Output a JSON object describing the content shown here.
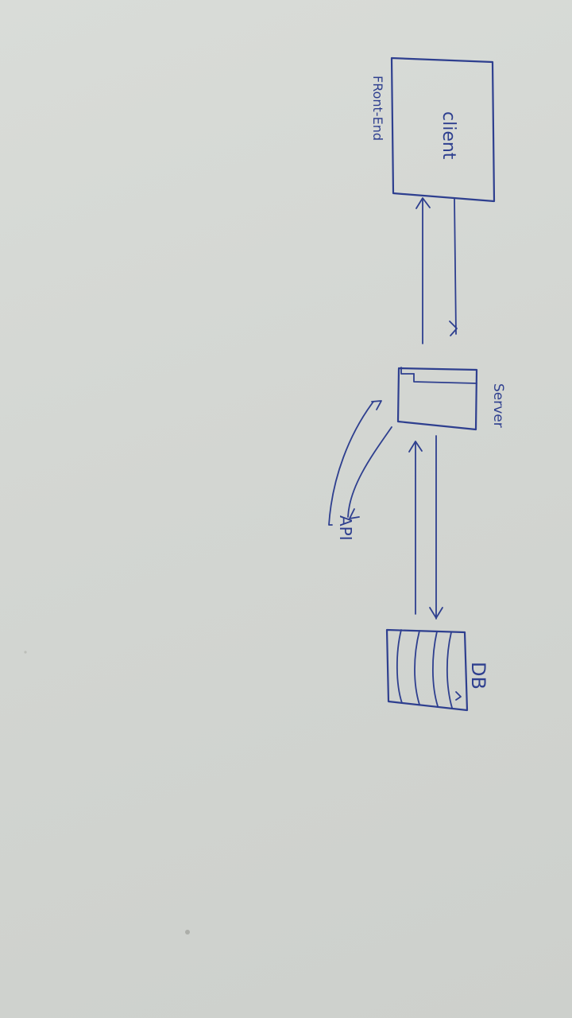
{
  "diagram": {
    "nodes": {
      "client": {
        "label": "client"
      },
      "server": {
        "label": "Server"
      },
      "db": {
        "label": "DB"
      }
    },
    "annotations": {
      "frontend": "FRont-End",
      "api": "API"
    },
    "edges": [
      {
        "from": "client",
        "to": "server",
        "direction": "bidirectional"
      },
      {
        "from": "server",
        "to": "db",
        "direction": "bidirectional"
      },
      {
        "from": "server",
        "to": "api",
        "direction": "bidirectional"
      }
    ],
    "colors": {
      "ink": "#2e3f8f",
      "paper": "#d6d9d5"
    }
  }
}
